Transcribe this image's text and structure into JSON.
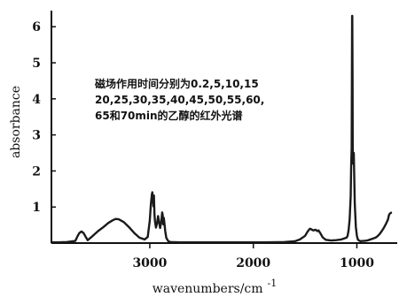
{
  "chart_data": {
    "type": "line",
    "title": "",
    "xlabel": "wavenumbers/cm",
    "xlabel_superscript": "-1",
    "ylabel": "absorbance",
    "xlim": [
      3950,
      610
    ],
    "ylim": [
      0,
      6.3
    ],
    "x_axis_reversed": true,
    "grid": false,
    "x_ticks": [
      {
        "value": 3000,
        "label": "3000"
      },
      {
        "value": 2000,
        "label": "2000"
      },
      {
        "value": 1000,
        "label": "1000"
      }
    ],
    "y_ticks": [
      {
        "value": 1,
        "label": "1"
      },
      {
        "value": 2,
        "label": "2"
      },
      {
        "value": 3,
        "label": "3"
      },
      {
        "value": 4,
        "label": "4"
      },
      {
        "value": 5,
        "label": "5"
      },
      {
        "value": 6,
        "label": "6"
      }
    ],
    "annotation": [
      "磁场作用时间分别为0.2,5,10,15",
      "20,25,30,35,40,45,50,55,60,",
      "65和70min的乙醇的红外光谱"
    ],
    "series": [
      {
        "color": "#1a1a1a",
        "x": [
          3950,
          3900,
          3800,
          3720,
          3700,
          3680,
          3660,
          3640,
          3620,
          3600,
          3550,
          3500,
          3450,
          3400,
          3360,
          3330,
          3300,
          3250,
          3200,
          3150,
          3100,
          3050,
          3020,
          3000,
          2990,
          2980,
          2975,
          2970,
          2965,
          2960,
          2955,
          2950,
          2940,
          2930,
          2920,
          2910,
          2900,
          2890,
          2880,
          2875,
          2870,
          2865,
          2860,
          2850,
          2840,
          2820,
          2800,
          2700,
          2500,
          2300,
          2100,
          1900,
          1700,
          1600,
          1550,
          1500,
          1480,
          1460,
          1450,
          1440,
          1420,
          1400,
          1380,
          1370,
          1350,
          1330,
          1300,
          1250,
          1200,
          1150,
          1100,
          1090,
          1080,
          1070,
          1060,
          1055,
          1050,
          1048,
          1046,
          1044,
          1042,
          1040,
          1035,
          1030,
          1020,
          1010,
          1000,
          990,
          980,
          960,
          950,
          930,
          900,
          880,
          850,
          820,
          800,
          780,
          760,
          740,
          720,
          700,
          690,
          680,
          670
        ],
        "y": [
          0.02,
          0.02,
          0.03,
          0.06,
          0.18,
          0.28,
          0.32,
          0.28,
          0.18,
          0.08,
          0.2,
          0.33,
          0.44,
          0.56,
          0.63,
          0.67,
          0.66,
          0.58,
          0.44,
          0.28,
          0.15,
          0.1,
          0.17,
          0.62,
          1.06,
          1.35,
          1.41,
          1.28,
          1.02,
          1.32,
          0.8,
          0.6,
          0.43,
          0.55,
          0.75,
          0.58,
          0.42,
          0.58,
          0.85,
          0.78,
          0.52,
          0.7,
          0.58,
          0.32,
          0.14,
          0.05,
          0.03,
          0.02,
          0.02,
          0.02,
          0.02,
          0.02,
          0.03,
          0.05,
          0.1,
          0.2,
          0.3,
          0.38,
          0.4,
          0.38,
          0.35,
          0.37,
          0.33,
          0.35,
          0.26,
          0.16,
          0.09,
          0.07,
          0.08,
          0.1,
          0.15,
          0.2,
          0.35,
          0.65,
          1.3,
          2.1,
          2.65,
          4.8,
          6.3,
          6.3,
          4.6,
          2.6,
          2.2,
          2.5,
          1.1,
          0.45,
          0.2,
          0.1,
          0.07,
          0.05,
          0.06,
          0.06,
          0.07,
          0.09,
          0.12,
          0.15,
          0.19,
          0.25,
          0.33,
          0.42,
          0.53,
          0.65,
          0.78,
          0.82,
          0.84
        ]
      }
    ]
  }
}
